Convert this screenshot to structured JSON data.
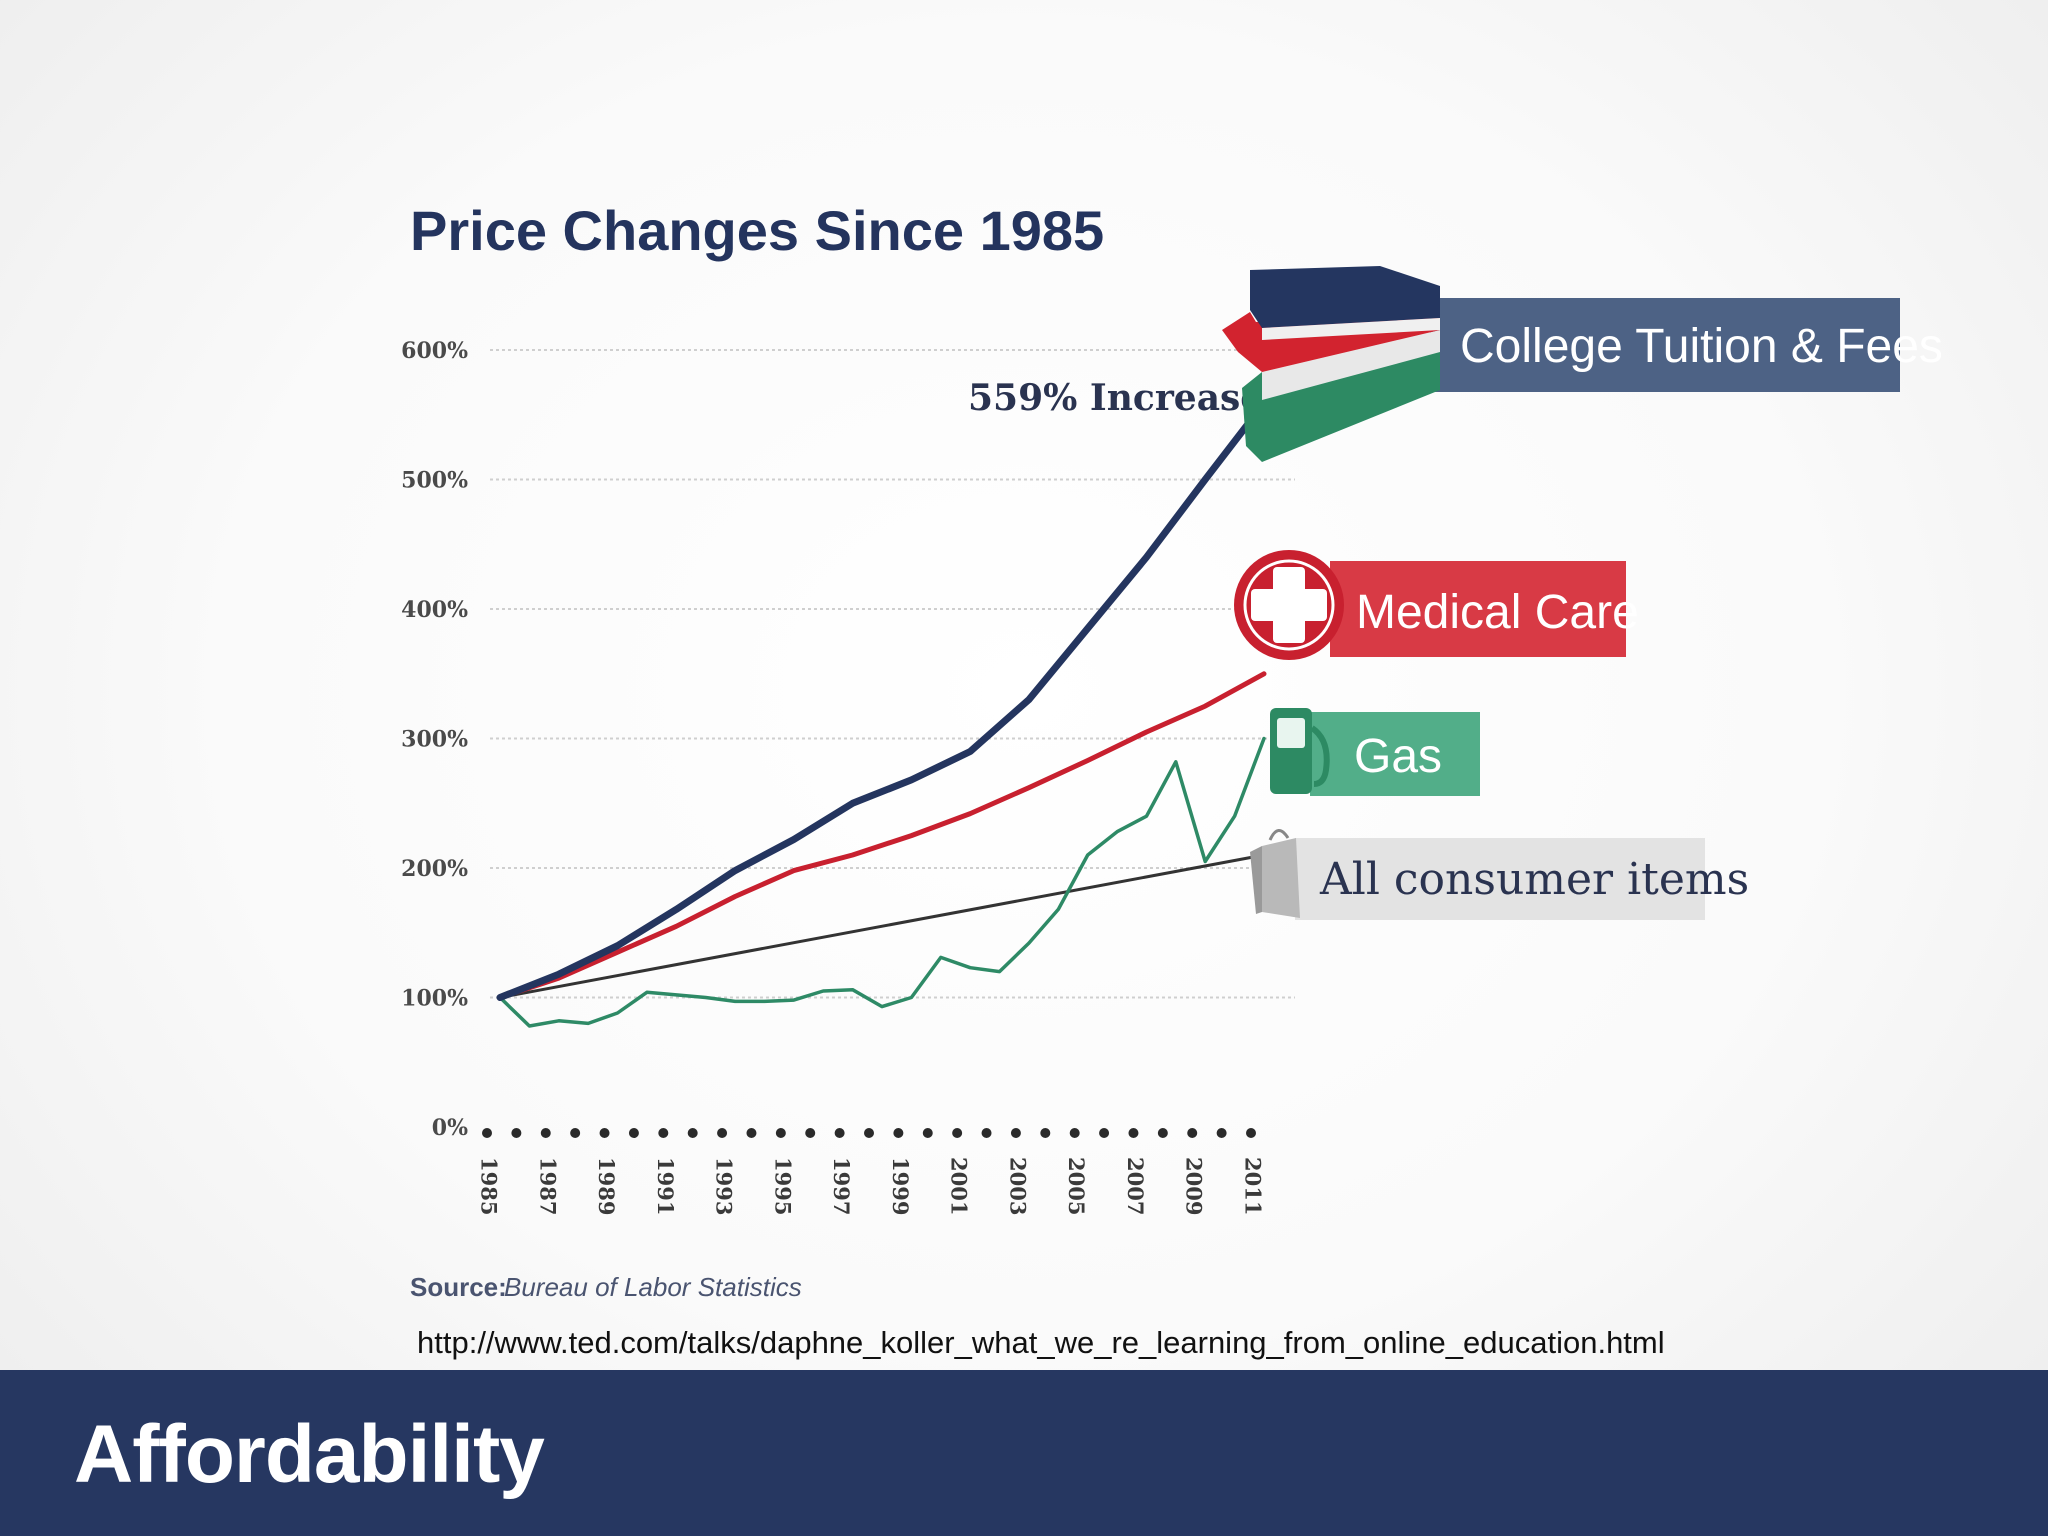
{
  "slide": {
    "url": "http://www.ted.com/talks/daphne_koller_what_we_re_learning_from_online_education.html",
    "footer_title": "Affordability",
    "colors": {
      "footer_bg": "#263761"
    }
  },
  "chart_data": {
    "type": "line",
    "title": "Price Changes Since 1985",
    "xlabel": "",
    "ylabel": "",
    "ylim": [
      0,
      600
    ],
    "xlim": [
      1985,
      2011
    ],
    "y_ticks": [
      0,
      100,
      200,
      300,
      400,
      500,
      600
    ],
    "y_tick_labels": [
      "0%",
      "100%",
      "200%",
      "300%",
      "400%",
      "500%",
      "600%"
    ],
    "x_tick_labels": [
      "1985",
      "1987",
      "1989",
      "1991",
      "1993",
      "1995",
      "1997",
      "1999",
      "2001",
      "2003",
      "2005",
      "2007",
      "2009",
      "2011"
    ],
    "grid": true,
    "series": [
      {
        "name": "College Tuition & Fees",
        "color": "#24355f",
        "icon": "books-icon",
        "x": [
          1985,
          1987,
          1989,
          1991,
          1993,
          1995,
          1997,
          1999,
          2001,
          2003,
          2005,
          2007,
          2009,
          2011
        ],
        "values": [
          100,
          118,
          140,
          168,
          198,
          222,
          250,
          268,
          290,
          330,
          385,
          440,
          500,
          559
        ]
      },
      {
        "name": "Medical Care",
        "color": "#c8202f",
        "icon": "medical-cross-icon",
        "x": [
          1985,
          1987,
          1989,
          1991,
          1993,
          1995,
          1997,
          1999,
          2001,
          2003,
          2005,
          2007,
          2009,
          2011
        ],
        "values": [
          100,
          115,
          135,
          155,
          178,
          198,
          210,
          225,
          242,
          262,
          283,
          305,
          325,
          350
        ]
      },
      {
        "name": "Gas",
        "color": "#2e8a66",
        "icon": "gas-pump-icon",
        "x": [
          1985,
          1986,
          1987,
          1988,
          1989,
          1990,
          1991,
          1992,
          1993,
          1994,
          1995,
          1996,
          1997,
          1998,
          1999,
          2000,
          2001,
          2002,
          2003,
          2004,
          2005,
          2006,
          2007,
          2008,
          2009,
          2010,
          2011
        ],
        "values": [
          100,
          78,
          82,
          80,
          88,
          104,
          102,
          100,
          97,
          97,
          98,
          105,
          106,
          93,
          100,
          131,
          123,
          120,
          142,
          168,
          210,
          228,
          240,
          282,
          205,
          240,
          300
        ]
      },
      {
        "name": "All consumer items",
        "color": "#333333",
        "icon": "shopping-bag-icon",
        "x": [
          1985,
          2011
        ],
        "values": [
          100,
          210
        ]
      }
    ],
    "annotations": [
      {
        "text": "559% Increase",
        "series": "College Tuition & Fees"
      }
    ],
    "source_label": "Source:",
    "source": "Bureau of Labor Statistics"
  }
}
